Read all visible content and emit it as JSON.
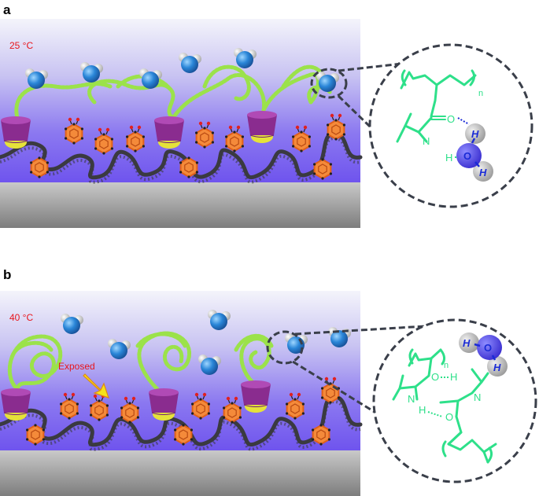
{
  "panels": [
    {
      "letter": "a",
      "temperature": "25 °C",
      "zoom": {
        "n_label": "n",
        "atoms": {
          "O": "O",
          "N": "N",
          "H": "H"
        },
        "water": {
          "O": "O",
          "H1": "H",
          "H2": "H"
        }
      }
    },
    {
      "letter": "b",
      "temperature": "40 °C",
      "annotation": "Exposed",
      "zoom": {
        "n_label": "n",
        "atoms": {
          "O1": "O",
          "H1": "H",
          "N1": "N",
          "N2": "N",
          "H2": "H",
          "O2": "O"
        },
        "water": {
          "O": "O",
          "H1": "H",
          "H2": "H"
        }
      }
    }
  ],
  "colors": {
    "chain_green": "#9be24a",
    "backbone": "#3a3a40",
    "cd_magenta": "#8a2c8f",
    "cd_yellow": "#e5e23a",
    "azo_orange": "#f07a2a",
    "water_blue": "#2a86d8",
    "formula_green": "#2ee08a",
    "temp_red": "#e8151b"
  }
}
